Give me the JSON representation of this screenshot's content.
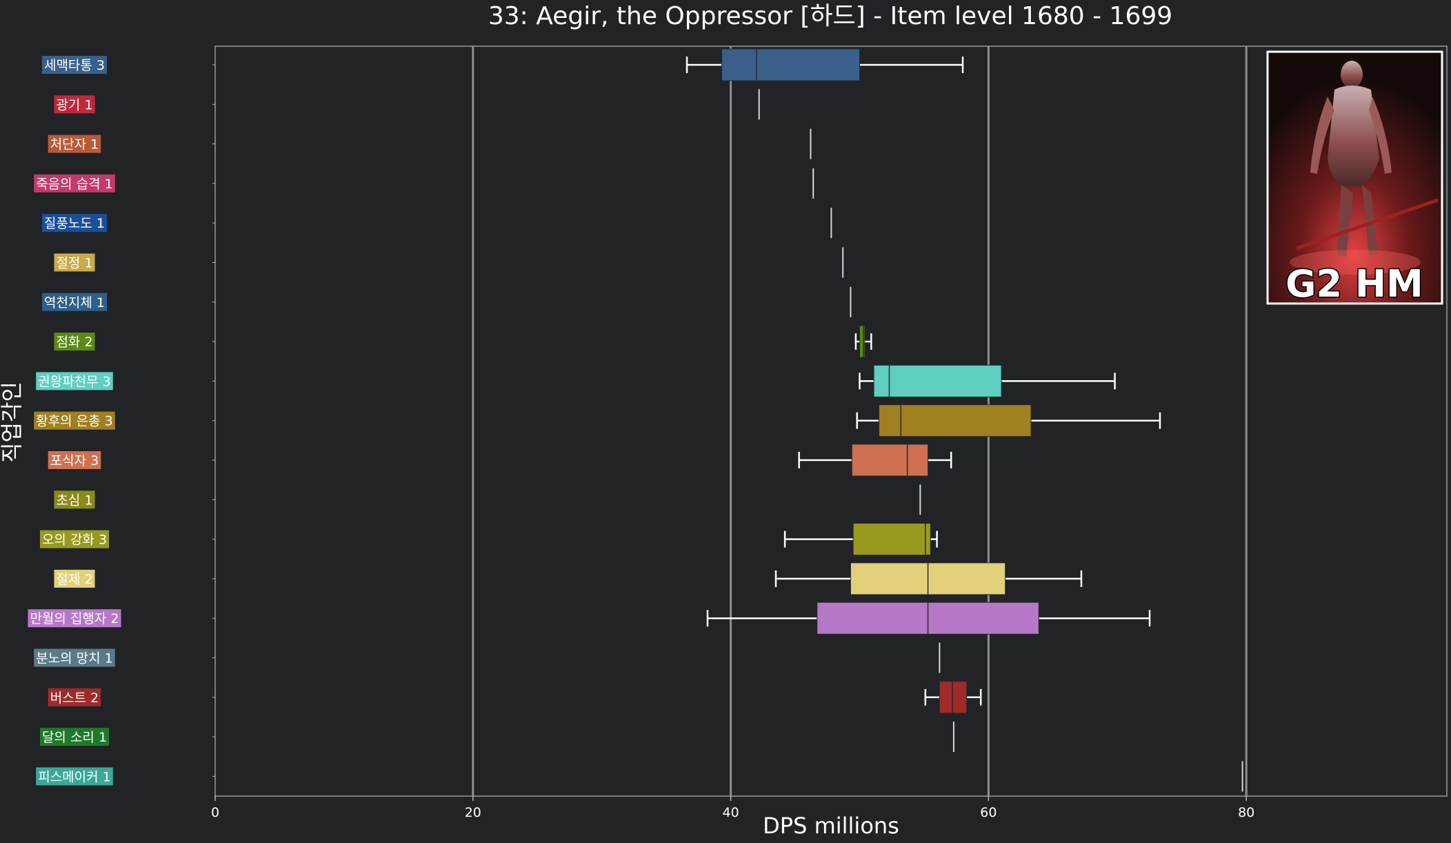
{
  "chart_data": {
    "type": "boxplot",
    "orientation": "horizontal",
    "title": "33: Aegir, the Oppressor [하드] - Item level 1680 - 1699",
    "xlabel": "DPS millions",
    "ylabel": "직업각인",
    "xlim": [
      0,
      95.5
    ],
    "xticks": [
      0,
      20,
      40,
      60,
      80
    ],
    "grid": "vertical major lines at 20, 40, 60, 80",
    "boss_image": {
      "badge_text": "G2 HM",
      "frame_color": "#ffffff"
    },
    "categories": [
      {
        "label": "세맥타통 3",
        "color": "#3a5f8a",
        "min": 36.6,
        "q1": 39.3,
        "median": 42.0,
        "q3": 50.0,
        "max": 58.0
      },
      {
        "label": "광기 1",
        "color": "#c0283c",
        "min": 42.2,
        "q1": 42.2,
        "median": 42.2,
        "q3": 42.2,
        "max": 42.2
      },
      {
        "label": "처단자 1",
        "color": "#b85a3a",
        "min": 46.2,
        "q1": 46.2,
        "median": 46.2,
        "q3": 46.2,
        "max": 46.2
      },
      {
        "label": "죽음의 습격 1",
        "color": "#c43a6a",
        "min": 46.4,
        "q1": 46.4,
        "median": 46.4,
        "q3": 46.4,
        "max": 46.4
      },
      {
        "label": "질풍노도 1",
        "color": "#1a4f9a",
        "min": 47.8,
        "q1": 47.8,
        "median": 47.8,
        "q3": 47.8,
        "max": 47.8
      },
      {
        "label": "절정 1",
        "color": "#c9a94a",
        "min": 48.7,
        "q1": 48.7,
        "median": 48.7,
        "q3": 48.7,
        "max": 48.7
      },
      {
        "label": "역천지체 1",
        "color": "#2f5f8a",
        "min": 49.3,
        "q1": 49.3,
        "median": 49.3,
        "q3": 49.3,
        "max": 49.3
      },
      {
        "label": "점화 2",
        "color": "#5a8a14",
        "min": 49.7,
        "q1": 50.0,
        "median": 50.3,
        "q3": 50.4,
        "max": 50.9
      },
      {
        "label": "권왕파천무 3",
        "color": "#5ecfc0",
        "min": 50.0,
        "q1": 51.1,
        "median": 52.3,
        "q3": 61.0,
        "max": 69.8
      },
      {
        "label": "황후의 은총 3",
        "color": "#a08020",
        "min": 49.8,
        "q1": 51.5,
        "median": 53.2,
        "q3": 63.3,
        "max": 73.3
      },
      {
        "label": "포식자 3",
        "color": "#cf7050",
        "min": 45.3,
        "q1": 49.4,
        "median": 53.7,
        "q3": 55.3,
        "max": 57.1
      },
      {
        "label": "초심 1",
        "color": "#8a8a18",
        "min": 54.7,
        "q1": 54.7,
        "median": 54.7,
        "q3": 54.7,
        "max": 54.7
      },
      {
        "label": "오의 강화 3",
        "color": "#989a20",
        "min": 44.2,
        "q1": 49.5,
        "median": 55.1,
        "q3": 55.5,
        "max": 56.0
      },
      {
        "label": "절제 2",
        "color": "#e2d07a",
        "min": 43.5,
        "q1": 49.3,
        "median": 55.3,
        "q3": 61.3,
        "max": 67.2
      },
      {
        "label": "만월의 집행자 2",
        "color": "#b878c8",
        "min": 38.2,
        "q1": 46.7,
        "median": 55.3,
        "q3": 63.9,
        "max": 72.5
      },
      {
        "label": "분노의 망치 1",
        "color": "#5a7a8a",
        "min": 56.2,
        "q1": 56.2,
        "median": 56.2,
        "q3": 56.2,
        "max": 56.2
      },
      {
        "label": "버스트 2",
        "color": "#a02a2a",
        "min": 55.1,
        "q1": 56.2,
        "median": 57.2,
        "q3": 58.3,
        "max": 59.4
      },
      {
        "label": "달의 소리 1",
        "color": "#1f7a2a",
        "min": 57.3,
        "q1": 57.3,
        "median": 57.3,
        "q3": 57.3,
        "max": 57.3
      },
      {
        "label": "피스메이커 1",
        "color": "#3aa89a",
        "min": 79.7,
        "q1": 79.7,
        "median": 79.7,
        "q3": 79.7,
        "max": 79.7
      }
    ]
  }
}
